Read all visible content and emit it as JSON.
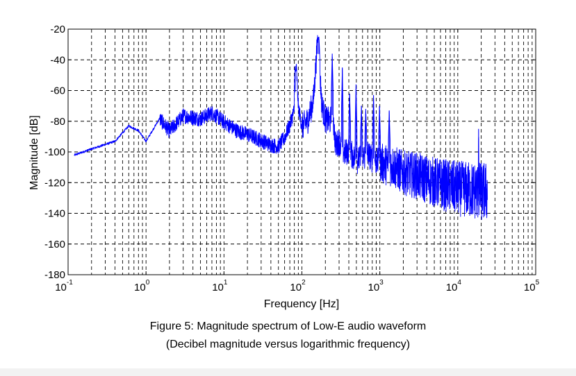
{
  "chart_data": {
    "type": "line",
    "title": "",
    "xlabel": "Frequency [Hz]",
    "ylabel": "Magnitude [dB]",
    "x_scale": "log",
    "xlim": [
      0.1,
      100000
    ],
    "ylim": [
      -180,
      -20
    ],
    "x_ticks": [
      {
        "base": "10",
        "exp": "-1"
      },
      {
        "base": "10",
        "exp": "0"
      },
      {
        "base": "10",
        "exp": "1"
      },
      {
        "base": "10",
        "exp": "2"
      },
      {
        "base": "10",
        "exp": "3"
      },
      {
        "base": "10",
        "exp": "4"
      },
      {
        "base": "10",
        "exp": "5"
      }
    ],
    "y_ticks": [
      "-20",
      "-40",
      "-60",
      "-80",
      "-100",
      "-120",
      "-140",
      "-160",
      "-180"
    ],
    "grid": true,
    "series": [
      {
        "color": "#0000ff",
        "x": [
          0.12,
          0.2,
          0.4,
          0.6,
          0.8,
          1.0,
          1.5,
          2,
          3,
          5,
          7,
          10,
          15,
          20,
          30,
          40,
          50,
          60,
          70,
          80,
          85,
          90,
          100,
          120,
          140,
          160,
          180,
          200,
          230,
          250,
          270,
          300,
          350,
          400,
          500,
          600,
          700,
          800,
          1000,
          1500,
          2000,
          3000,
          5000,
          7000,
          10000,
          15000,
          20000,
          24000
        ],
        "y": [
          -102,
          -98,
          -93,
          -83,
          -86,
          -93,
          -78,
          -86,
          -76,
          -78,
          -74,
          -80,
          -86,
          -88,
          -92,
          -95,
          -96,
          -90,
          -82,
          -72,
          -45,
          -70,
          -83,
          -78,
          -66,
          -25,
          -68,
          -78,
          -79,
          -75,
          -95,
          -92,
          -100,
          -98,
          -105,
          -103,
          -100,
          -104,
          -106,
          -108,
          -112,
          -114,
          -118,
          -120,
          -122,
          -123,
          -124,
          -124
        ]
      }
    ],
    "peaks": [
      {
        "x": 82,
        "y": -44
      },
      {
        "x": 165,
        "y": -25
      },
      {
        "x": 245,
        "y": -36
      },
      {
        "x": 330,
        "y": -45
      },
      {
        "x": 410,
        "y": -62
      },
      {
        "x": 495,
        "y": -56
      },
      {
        "x": 580,
        "y": -70
      },
      {
        "x": 660,
        "y": -72
      },
      {
        "x": 830,
        "y": -63
      },
      {
        "x": 990,
        "y": -70
      },
      {
        "x": 1320,
        "y": -73
      },
      {
        "x": 18500,
        "y": -85
      }
    ]
  },
  "caption": {
    "line1": "Figure 5:  Magnitude spectrum of Low-E audio waveform",
    "line2": "(Decibel magnitude versus logarithmic frequency)"
  }
}
